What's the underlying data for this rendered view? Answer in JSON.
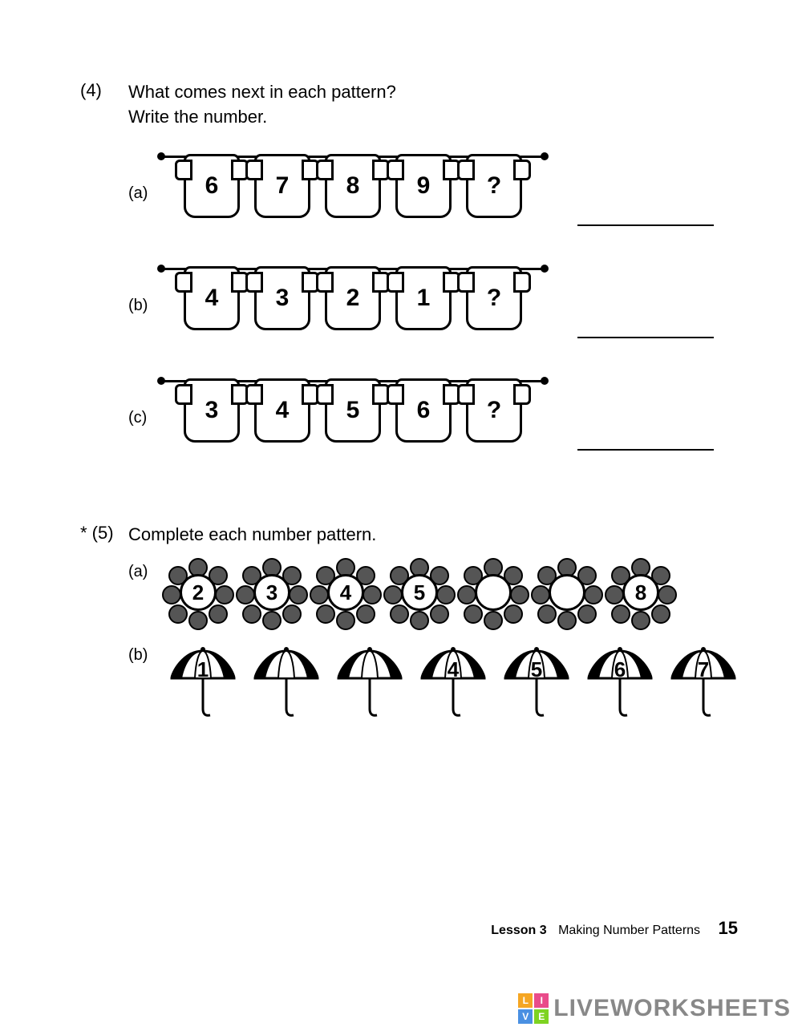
{
  "question4": {
    "number": "(4)",
    "prompt_line1": "What comes next in each pattern?",
    "prompt_line2": "Write the number.",
    "rows": {
      "a": {
        "label": "(a)",
        "values": [
          "6",
          "7",
          "8",
          "9",
          "?"
        ]
      },
      "b": {
        "label": "(b)",
        "values": [
          "4",
          "3",
          "2",
          "1",
          "?"
        ]
      },
      "c": {
        "label": "(c)",
        "values": [
          "3",
          "4",
          "5",
          "6",
          "?"
        ]
      }
    }
  },
  "question5": {
    "number": "* (5)",
    "prompt": "Complete each number pattern.",
    "a": {
      "label": "(a)",
      "values": [
        "2",
        "3",
        "4",
        "5",
        "",
        "",
        "8"
      ]
    },
    "b": {
      "label": "(b)",
      "values": [
        "1",
        "",
        "",
        "4",
        "5",
        "6",
        "7"
      ]
    }
  },
  "footer": {
    "lesson": "Lesson 3",
    "title": "Making Number Patterns",
    "page": "15"
  },
  "watermark": {
    "text": "LIVEWORKSHEETS",
    "logo": {
      "tl": "L",
      "tr": "I",
      "bl": "V",
      "br": "E",
      "colors": {
        "tl": "#f5a623",
        "tr": "#e94b8a",
        "bl": "#4a90e2",
        "br": "#7ed321"
      }
    }
  },
  "style": {
    "ink": "#000000",
    "petal_fill": "#555555",
    "umbrella_dark": "#000000",
    "umbrella_light": "#ffffff"
  }
}
